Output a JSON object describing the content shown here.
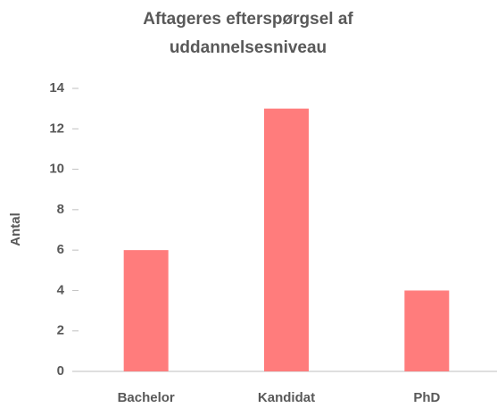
{
  "chart_data": {
    "type": "bar",
    "title": [
      "Aftageres efterspørgsel af",
      "uddannelsesniveau"
    ],
    "y_label": "Antal",
    "categories": [
      "Bachelor",
      "Kandidat",
      "PhD"
    ],
    "values": [
      6,
      13,
      4
    ],
    "color": "#ff7c7c",
    "ylim": [
      0,
      14
    ],
    "yticks": [
      0,
      2,
      4,
      6,
      8,
      10,
      12,
      14
    ]
  }
}
